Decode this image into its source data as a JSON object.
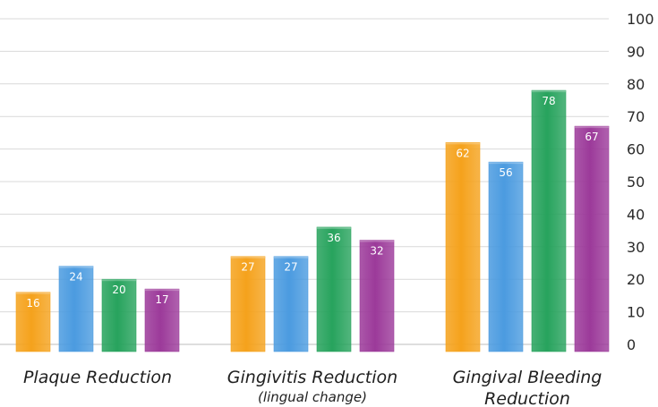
{
  "chart_data": {
    "type": "bar",
    "title": "",
    "xlabel": "",
    "ylabel": "",
    "ylim": [
      0,
      100
    ],
    "yticks": [
      0,
      10,
      20,
      30,
      40,
      50,
      60,
      70,
      80,
      90,
      100
    ],
    "grid": true,
    "legend": "none",
    "y_axis_position": "right",
    "categories": [
      {
        "lines": [
          "Plaque Reduction"
        ],
        "sub": ""
      },
      {
        "lines": [
          "Gingivitis Reduction"
        ],
        "sub": "(lingual change)"
      },
      {
        "lines": [
          "Gingival Bleeding",
          "Reduction"
        ],
        "sub": ""
      }
    ],
    "series": [
      {
        "color": "#f5a21c",
        "values": [
          16,
          27,
          62
        ]
      },
      {
        "color": "#4b9be0",
        "values": [
          24,
          27,
          56
        ]
      },
      {
        "color": "#27a35d",
        "values": [
          20,
          36,
          78
        ]
      },
      {
        "color": "#9c3a9a",
        "values": [
          17,
          32,
          67
        ]
      }
    ]
  }
}
